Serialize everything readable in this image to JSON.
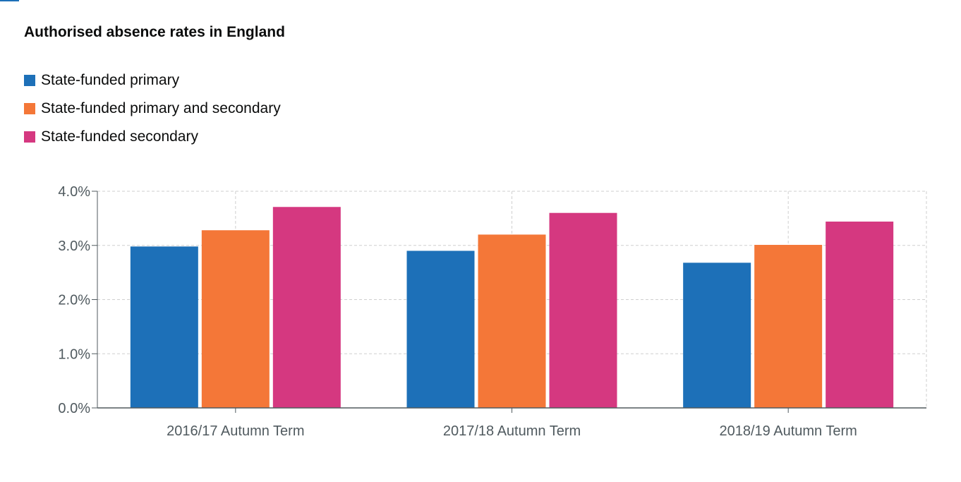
{
  "chart_data": {
    "type": "bar",
    "title": "Authorised absence rates in England",
    "categories": [
      "2016/17 Autumn Term",
      "2017/18 Autumn Term",
      "2018/19 Autumn Term"
    ],
    "series": [
      {
        "name": "State-funded primary",
        "color": "#1d70b8",
        "values": [
          2.98,
          2.9,
          2.68
        ]
      },
      {
        "name": "State-funded primary and secondary",
        "color": "#f47738",
        "values": [
          3.28,
          3.2,
          3.01
        ]
      },
      {
        "name": "State-funded secondary",
        "color": "#d53880",
        "values": [
          3.71,
          3.6,
          3.44
        ]
      }
    ],
    "ylim": [
      0,
      4
    ],
    "yticks": [
      0,
      1,
      2,
      3,
      4
    ],
    "ytick_labels": [
      "0.0%",
      "1.0%",
      "2.0%",
      "3.0%",
      "4.0%"
    ],
    "grid": true,
    "legend_position": "top-left"
  }
}
